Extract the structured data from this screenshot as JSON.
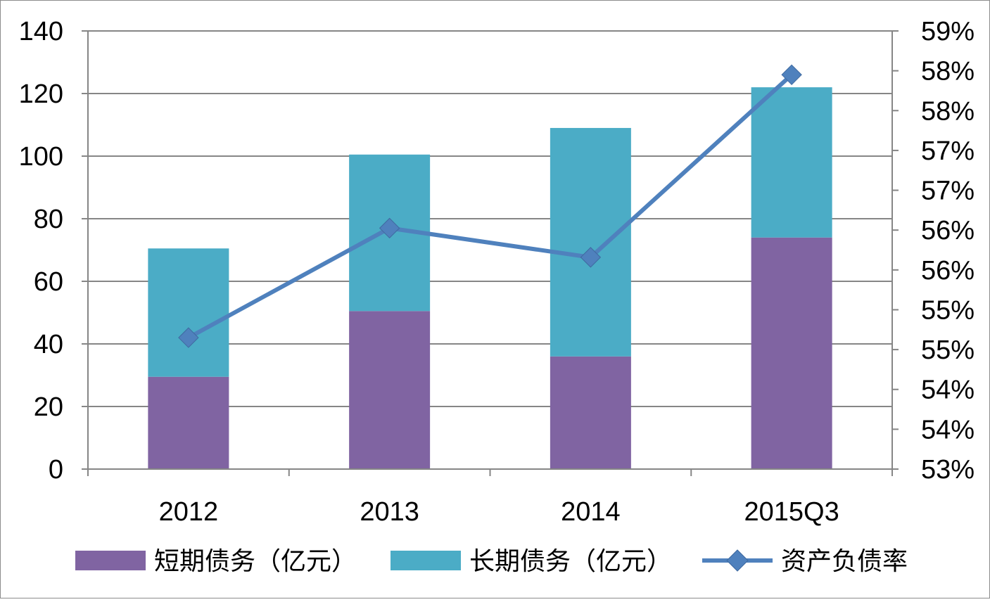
{
  "chart_data": {
    "type": "bar",
    "stacked": true,
    "categories": [
      "2012",
      "2013",
      "2014",
      "2015Q3"
    ],
    "series": [
      {
        "name": "短期债务（亿元）",
        "type": "bar",
        "axis": "left",
        "color": "#8064A2",
        "values": [
          29.5,
          50.5,
          36,
          74
        ]
      },
      {
        "name": "长期债务（亿元）",
        "type": "bar",
        "axis": "left",
        "color": "#4BACC6",
        "values": [
          41,
          50,
          73,
          48
        ]
      },
      {
        "name": "资产负债率",
        "type": "line",
        "axis": "right",
        "color": "#4F81BD",
        "marker": "diamond",
        "values": [
          54.8,
          56.3,
          55.9,
          58.4
        ]
      }
    ],
    "left_axis": {
      "ylim": [
        0,
        140
      ],
      "ticks": [
        "0",
        "20",
        "40",
        "60",
        "80",
        "100",
        "120",
        "140"
      ]
    },
    "right_axis": {
      "ylim": [
        53,
        59
      ],
      "unit": "%",
      "ticks": [
        "53%",
        "54%",
        "54%",
        "55%",
        "55%",
        "56%",
        "56%",
        "57%",
        "57%",
        "58%",
        "58%",
        "59%"
      ]
    },
    "grid": true,
    "legend_position": "bottom"
  }
}
